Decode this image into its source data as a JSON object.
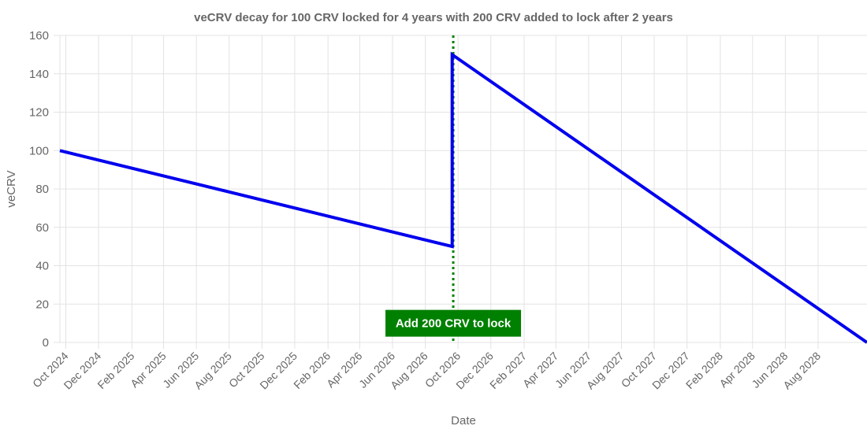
{
  "chart_data": {
    "type": "line",
    "title": "veCRV decay for 100 CRV locked for 4 years with 200 CRV added to lock after 2 years",
    "xlabel": "Date",
    "ylabel": "veCRV",
    "ylim": [
      0,
      160
    ],
    "yticks": [
      0,
      20,
      40,
      60,
      80,
      100,
      120,
      140,
      160
    ],
    "xlim": [
      "2024-09-20",
      "2028-10-31"
    ],
    "xticks": [
      {
        "date": "2024-10-01",
        "label": "Oct 2024"
      },
      {
        "date": "2024-12-01",
        "label": "Dec 2024"
      },
      {
        "date": "2025-02-01",
        "label": "Feb 2025"
      },
      {
        "date": "2025-04-01",
        "label": "Apr 2025"
      },
      {
        "date": "2025-06-01",
        "label": "Jun 2025"
      },
      {
        "date": "2025-08-01",
        "label": "Aug 2025"
      },
      {
        "date": "2025-10-01",
        "label": "Oct 2025"
      },
      {
        "date": "2025-12-01",
        "label": "Dec 2025"
      },
      {
        "date": "2026-02-01",
        "label": "Feb 2026"
      },
      {
        "date": "2026-04-01",
        "label": "Apr 2026"
      },
      {
        "date": "2026-06-01",
        "label": "Jun 2026"
      },
      {
        "date": "2026-08-01",
        "label": "Aug 2026"
      },
      {
        "date": "2026-10-01",
        "label": "Oct 2026"
      },
      {
        "date": "2026-12-01",
        "label": "Dec 2026"
      },
      {
        "date": "2027-02-01",
        "label": "Feb 2027"
      },
      {
        "date": "2027-04-01",
        "label": "Apr 2027"
      },
      {
        "date": "2027-06-01",
        "label": "Jun 2027"
      },
      {
        "date": "2027-08-01",
        "label": "Aug 2027"
      },
      {
        "date": "2027-10-01",
        "label": "Oct 2027"
      },
      {
        "date": "2027-12-01",
        "label": "Dec 2027"
      },
      {
        "date": "2028-02-01",
        "label": "Feb 2028"
      },
      {
        "date": "2028-04-01",
        "label": "Apr 2028"
      },
      {
        "date": "2028-06-01",
        "label": "Jun 2028"
      },
      {
        "date": "2028-08-01",
        "label": "Aug 2028"
      }
    ],
    "grid": true,
    "series": [
      {
        "color": "#0000ee",
        "points": [
          {
            "x": "2024-09-20",
            "y": 100
          },
          {
            "x": "2026-09-20",
            "y": 50
          },
          {
            "x": "2026-09-20",
            "y": 150
          },
          {
            "x": "2028-10-31",
            "y": 0
          }
        ]
      }
    ],
    "annotations": [
      {
        "type": "vertical-line",
        "x": "2026-09-22",
        "style": "dotted",
        "color": "#008000",
        "label": "Add 200 CRV to lock",
        "label_y": 10,
        "label_background": "#008000",
        "label_color": "#ffffff"
      }
    ]
  }
}
